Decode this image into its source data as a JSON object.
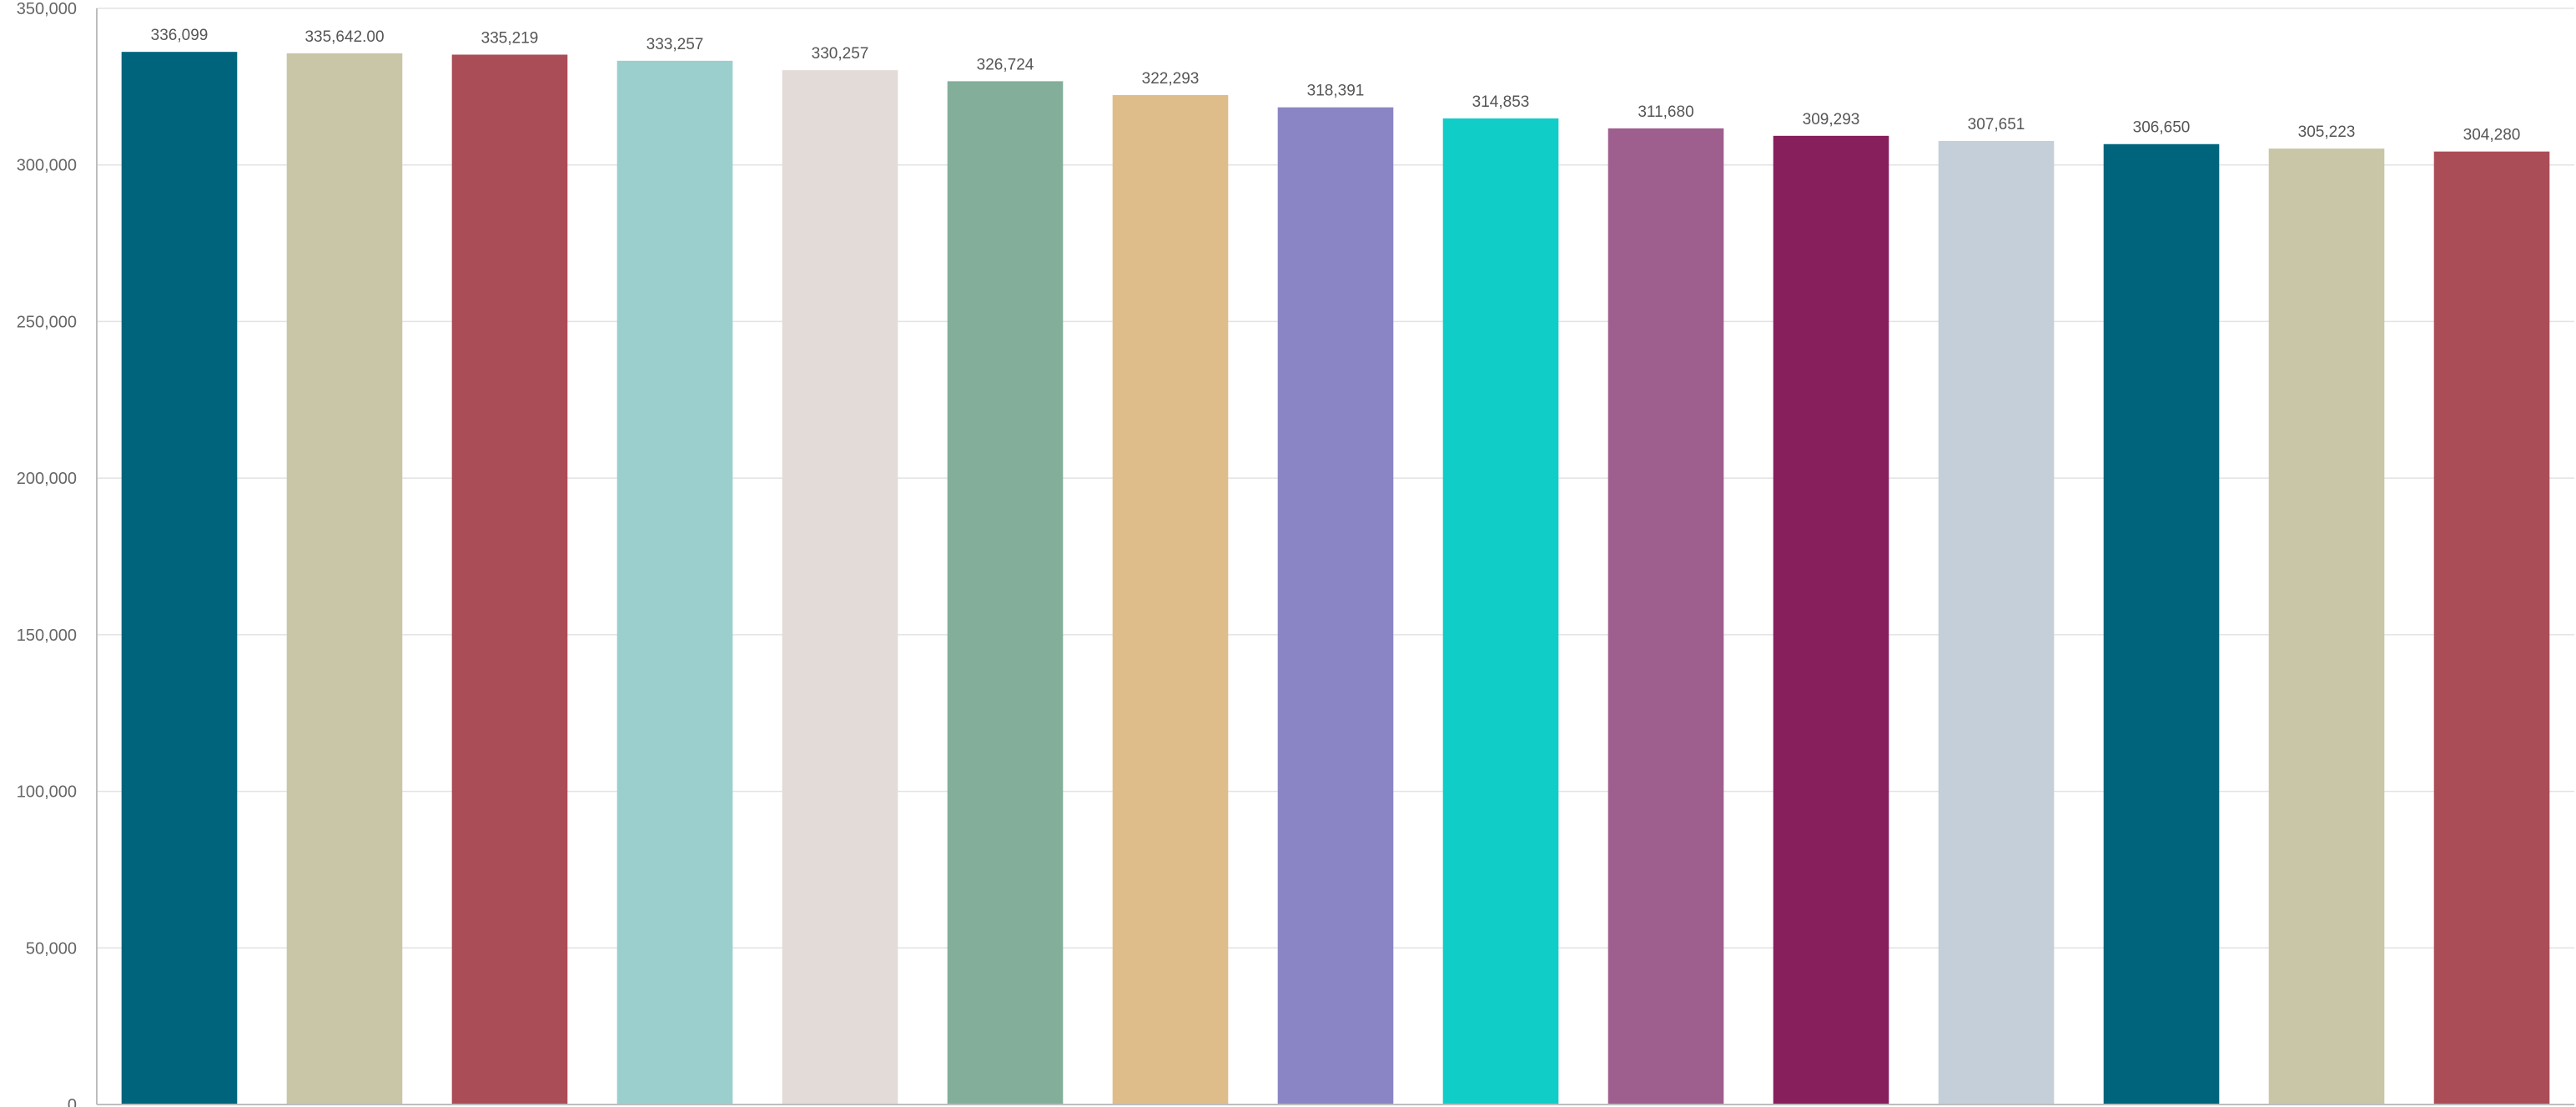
{
  "chart_data": {
    "type": "bar",
    "categories": [
      "",
      "",
      "",
      "",
      "",
      "",
      "",
      "",
      "",
      "",
      "",
      "",
      "",
      "",
      ""
    ],
    "values": [
      336099,
      335642,
      335219,
      333257,
      330257,
      326724,
      322293,
      318391,
      314853,
      311680,
      309293,
      307651,
      306650,
      305223,
      304280
    ],
    "data_labels": [
      "336,099",
      "335,642.00",
      "335,219",
      "333,257",
      "330,257",
      "326,724",
      "322,293",
      "318,391",
      "314,853",
      "311,680",
      "309,293",
      "307,651",
      "306,650",
      "305,223",
      "304,280"
    ],
    "colors": [
      "#00647d",
      "#c8c6a7",
      "#ab4d57",
      "#9bcfce",
      "#e3dbd7",
      "#83ae9a",
      "#dfbd8b",
      "#8a85c4",
      "#11cdc8",
      "#9e5f8e",
      "#871f5c",
      "#c5cfd9",
      "#00647d",
      "#c8c6a7",
      "#ab4d57"
    ],
    "title": "",
    "xlabel": "",
    "ylabel": "",
    "ylim": [
      0,
      350000
    ],
    "yticks": [
      0,
      50000,
      100000,
      150000,
      200000,
      250000,
      300000,
      350000
    ],
    "ytick_labels": [
      "0",
      "50,000",
      "100,000",
      "150,000",
      "200,000",
      "250,000",
      "300,000",
      "350,000"
    ],
    "grid": true,
    "legend": "none"
  }
}
